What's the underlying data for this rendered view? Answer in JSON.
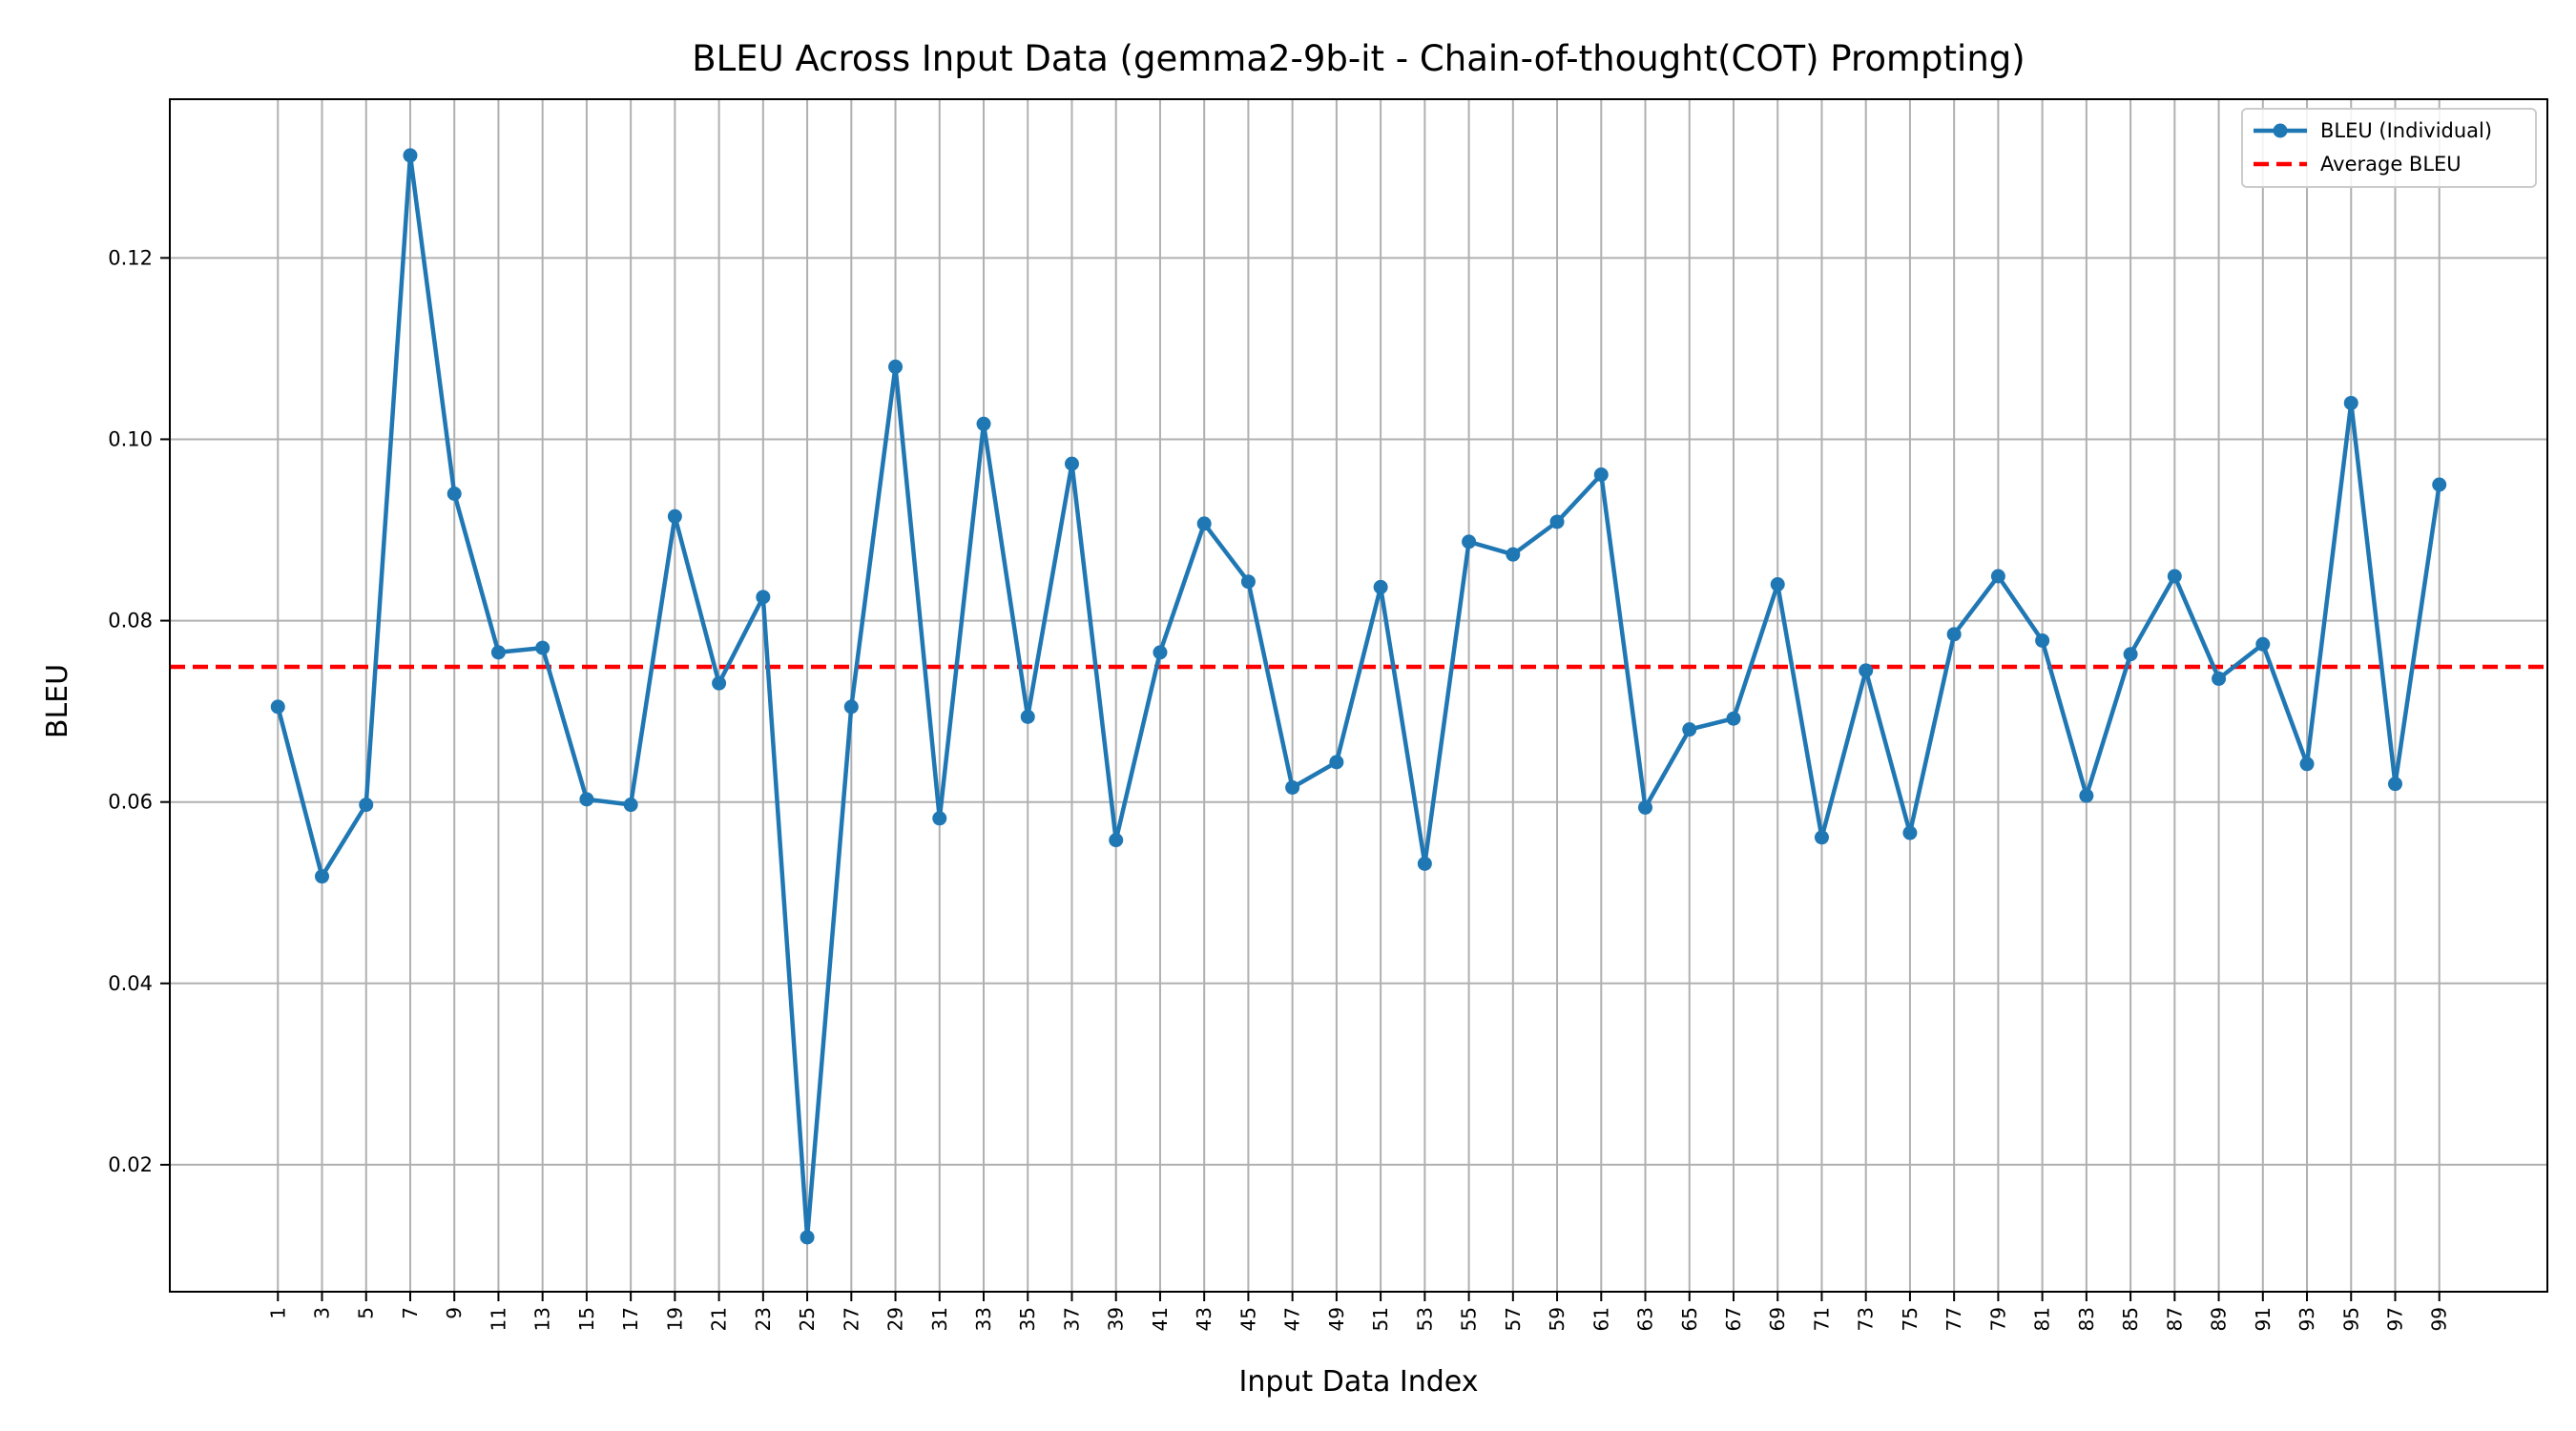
{
  "chart_data": {
    "type": "line",
    "title": "BLEU Across Input Data (gemma2-9b-it - Chain-of-thought(COT) Prompting)",
    "xlabel": "Input Data Index",
    "ylabel": "BLEU",
    "x": [
      1,
      3,
      5,
      7,
      9,
      11,
      13,
      15,
      17,
      19,
      21,
      23,
      25,
      27,
      29,
      31,
      33,
      35,
      37,
      39,
      41,
      43,
      45,
      47,
      49,
      51,
      53,
      55,
      57,
      59,
      61,
      63,
      65,
      67,
      69,
      71,
      73,
      75,
      77,
      79,
      81,
      83,
      85,
      87,
      89,
      91,
      93,
      95,
      97,
      99
    ],
    "xticks": [
      "1",
      "3",
      "5",
      "7",
      "9",
      "11",
      "13",
      "15",
      "17",
      "19",
      "21",
      "23",
      "25",
      "27",
      "29",
      "31",
      "33",
      "35",
      "37",
      "39",
      "41",
      "43",
      "45",
      "47",
      "49",
      "51",
      "53",
      "55",
      "57",
      "59",
      "61",
      "63",
      "65",
      "67",
      "69",
      "71",
      "73",
      "75",
      "77",
      "79",
      "81",
      "83",
      "85",
      "87",
      "89",
      "91",
      "93",
      "95",
      "97",
      "99"
    ],
    "xlim": [
      -3.9,
      103.9
    ],
    "ylim": [
      0.006,
      0.1375
    ],
    "yticks": [
      0.02,
      0.04,
      0.06,
      0.08,
      0.1,
      0.12
    ],
    "ytick_labels": [
      "0.02",
      "0.04",
      "0.06",
      "0.08",
      "0.10",
      "0.12"
    ],
    "grid": true,
    "legend_position": "top-right",
    "series": [
      {
        "name": "BLEU (Individual)",
        "color": "#1f77b4",
        "style": "solid-markers",
        "values": [
          0.0705,
          0.0518,
          0.0597,
          0.1313,
          0.094,
          0.0765,
          0.077,
          0.0603,
          0.0597,
          0.0915,
          0.0731,
          0.0826,
          0.012,
          0.0705,
          0.108,
          0.0582,
          0.1017,
          0.0694,
          0.0973,
          0.0558,
          0.0765,
          0.0907,
          0.0843,
          0.0616,
          0.0644,
          0.0837,
          0.0532,
          0.0887,
          0.0873,
          0.0909,
          0.0961,
          0.0594,
          0.068,
          0.0692,
          0.084,
          0.0561,
          0.0745,
          0.0566,
          0.0785,
          0.0849,
          0.0778,
          0.0607,
          0.0763,
          0.0849,
          0.0736,
          0.0774,
          0.0642,
          0.104,
          0.062,
          0.095
        ]
      },
      {
        "name": "Average BLEU",
        "color": "#ff0000",
        "style": "dashed",
        "value": 0.0749
      }
    ]
  }
}
